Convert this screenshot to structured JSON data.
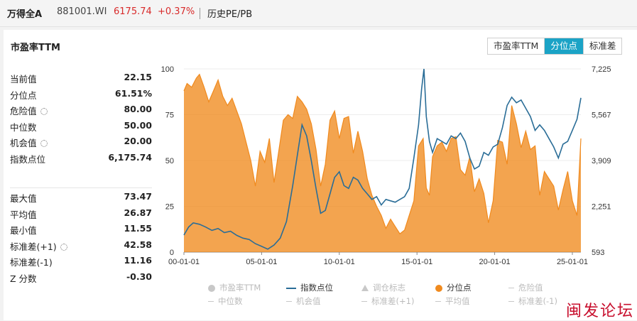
{
  "header": {
    "title": "万得全A",
    "code": "881001.WI",
    "price": "6175.74",
    "change": "+0.37%",
    "history_link": "历史PE/PB",
    "up_color": "#d82a2a"
  },
  "panel": {
    "title": "市盈率TTM",
    "tabs": [
      {
        "label": "市盈率TTM",
        "active": false
      },
      {
        "label": "分位点",
        "active": true
      },
      {
        "label": "标准差",
        "active": false
      }
    ],
    "accent": "#1ba3c6"
  },
  "stats_top": [
    {
      "label": "当前值",
      "value": "22.15",
      "gear": false
    },
    {
      "label": "分位点",
      "value": "61.51%",
      "gear": false
    },
    {
      "label": "危险值",
      "value": "80.00",
      "gear": true
    },
    {
      "label": "中位数",
      "value": "50.00",
      "gear": false
    },
    {
      "label": "机会值",
      "value": "20.00",
      "gear": true
    },
    {
      "label": "指数点位",
      "value": "6,175.74",
      "gear": false
    }
  ],
  "stats_bottom": [
    {
      "label": "最大值",
      "value": "73.47",
      "gear": false
    },
    {
      "label": "平均值",
      "value": "26.87",
      "gear": false
    },
    {
      "label": "最小值",
      "value": "11.55",
      "gear": false
    },
    {
      "label": "标准差(+1)",
      "value": "42.58",
      "gear": true
    },
    {
      "label": "标准差(-1)",
      "value": "11.16",
      "gear": false
    },
    {
      "label": "Z 分数",
      "value": "-0.30",
      "gear": false
    }
  ],
  "chart_data": {
    "type": "area",
    "x_ticks": [
      "00-01-01",
      "05-01-01",
      "10-01-01",
      "15-01-01",
      "20-01-01",
      "25-01-01"
    ],
    "x_range": [
      2000.0,
      2025.55
    ],
    "left_axis": {
      "ticks": [
        "0",
        "25",
        "50",
        "75",
        "100"
      ],
      "range": [
        0,
        100
      ]
    },
    "right_axis": {
      "ticks": [
        "593",
        "2,251",
        "3,909",
        "5,567",
        "7,225"
      ],
      "range": [
        593,
        7225
      ]
    },
    "series": [
      {
        "name": "分位点",
        "axis": "left",
        "color": "#f08a1e",
        "x": [
          2000.0,
          2000.2,
          2000.5,
          2000.8,
          2001.0,
          2001.3,
          2001.6,
          2001.9,
          2002.2,
          2002.5,
          2002.8,
          2003.1,
          2003.4,
          2003.7,
          2004.0,
          2004.3,
          2004.6,
          2004.9,
          2005.2,
          2005.5,
          2005.8,
          2006.1,
          2006.4,
          2006.7,
          2007.0,
          2007.3,
          2007.6,
          2007.9,
          2008.2,
          2008.5,
          2008.8,
          2009.1,
          2009.4,
          2009.7,
          2010.0,
          2010.3,
          2010.6,
          2010.9,
          2011.2,
          2011.5,
          2011.8,
          2012.1,
          2012.4,
          2012.7,
          2013.0,
          2013.3,
          2013.6,
          2013.9,
          2014.2,
          2014.5,
          2014.8,
          2015.1,
          2015.4,
          2015.6,
          2015.8,
          2016.0,
          2016.3,
          2016.6,
          2016.9,
          2017.2,
          2017.5,
          2017.8,
          2018.1,
          2018.4,
          2018.7,
          2019.0,
          2019.3,
          2019.6,
          2019.9,
          2020.2,
          2020.5,
          2020.8,
          2021.1,
          2021.4,
          2021.7,
          2022.0,
          2022.3,
          2022.6,
          2022.9,
          2023.2,
          2023.5,
          2023.8,
          2024.1,
          2024.4,
          2024.7,
          2025.0,
          2025.3,
          2025.55
        ],
        "values": [
          88,
          92,
          90,
          95,
          97,
          90,
          82,
          88,
          94,
          85,
          80,
          84,
          77,
          70,
          60,
          50,
          36,
          55,
          49,
          62,
          38,
          55,
          72,
          75,
          73,
          85,
          82,
          78,
          70,
          56,
          36,
          48,
          72,
          77,
          62,
          73,
          74,
          54,
          66,
          55,
          40,
          31,
          25,
          20,
          13,
          18,
          14,
          10,
          12,
          20,
          28,
          58,
          62,
          35,
          31,
          52,
          58,
          60,
          55,
          62,
          63,
          45,
          42,
          52,
          33,
          40,
          32,
          16,
          28,
          61,
          60,
          48,
          80,
          70,
          57,
          66,
          56,
          58,
          31,
          44,
          40,
          36,
          23,
          34,
          44,
          28,
          20,
          62
        ]
      },
      {
        "name": "指数点位",
        "axis": "right",
        "color": "#2a6d97",
        "x": [
          2000.0,
          2000.3,
          2000.6,
          2001.0,
          2001.4,
          2001.8,
          2002.2,
          2002.6,
          2003.0,
          2003.4,
          2003.8,
          2004.2,
          2004.6,
          2005.0,
          2005.4,
          2005.8,
          2006.2,
          2006.6,
          2007.0,
          2007.3,
          2007.6,
          2007.9,
          2008.2,
          2008.5,
          2008.8,
          2009.1,
          2009.4,
          2009.7,
          2010.0,
          2010.3,
          2010.6,
          2010.9,
          2011.2,
          2011.5,
          2011.8,
          2012.1,
          2012.4,
          2012.7,
          2013.0,
          2013.3,
          2013.6,
          2013.9,
          2014.2,
          2014.5,
          2014.8,
          2015.1,
          2015.3,
          2015.45,
          2015.6,
          2015.8,
          2016.0,
          2016.3,
          2016.6,
          2016.9,
          2017.2,
          2017.5,
          2017.8,
          2018.1,
          2018.4,
          2018.7,
          2019.0,
          2019.3,
          2019.6,
          2019.9,
          2020.2,
          2020.5,
          2020.8,
          2021.1,
          2021.4,
          2021.7,
          2022.0,
          2022.3,
          2022.6,
          2022.9,
          2023.2,
          2023.5,
          2023.8,
          2024.1,
          2024.4,
          2024.7,
          2025.0,
          2025.3,
          2025.55
        ],
        "values": [
          1210,
          1500,
          1650,
          1600,
          1500,
          1380,
          1450,
          1300,
          1350,
          1200,
          1100,
          1050,
          900,
          800,
          700,
          850,
          1100,
          1700,
          3000,
          4100,
          5200,
          4800,
          3900,
          2900,
          2000,
          2100,
          2700,
          3300,
          3500,
          3000,
          2900,
          3300,
          3200,
          2900,
          2700,
          2500,
          2600,
          2300,
          2500,
          2450,
          2400,
          2500,
          2600,
          2900,
          4000,
          5200,
          6500,
          7225,
          5500,
          4600,
          4200,
          4700,
          4600,
          4500,
          4800,
          4700,
          4900,
          4600,
          4000,
          3600,
          3700,
          4200,
          4100,
          4400,
          4500,
          5100,
          5900,
          6200,
          6000,
          6100,
          5800,
          5500,
          5000,
          5200,
          5000,
          4700,
          4400,
          4000,
          4500,
          4600,
          5000,
          5400,
          6175.74
        ]
      }
    ],
    "legend": [
      {
        "label": "市盈率TTM",
        "active": false,
        "icon": "circle"
      },
      {
        "label": "指数点位",
        "active": true,
        "icon": "line"
      },
      {
        "label": "调仓标志",
        "active": false,
        "icon": "triangle"
      },
      {
        "label": "分位点",
        "active": true,
        "icon": "circle"
      },
      {
        "label": "危险值",
        "active": false,
        "icon": "dash"
      },
      {
        "label": "中位数",
        "active": false,
        "icon": "dash"
      },
      {
        "label": "机会值",
        "active": false,
        "icon": "dash"
      },
      {
        "label": "标准差(+1)",
        "active": false,
        "icon": "dash"
      },
      {
        "label": "平均值",
        "active": false,
        "icon": "dash"
      },
      {
        "label": "标准差(-1)",
        "active": false,
        "icon": "dash"
      }
    ]
  },
  "watermark": "闽发论坛"
}
